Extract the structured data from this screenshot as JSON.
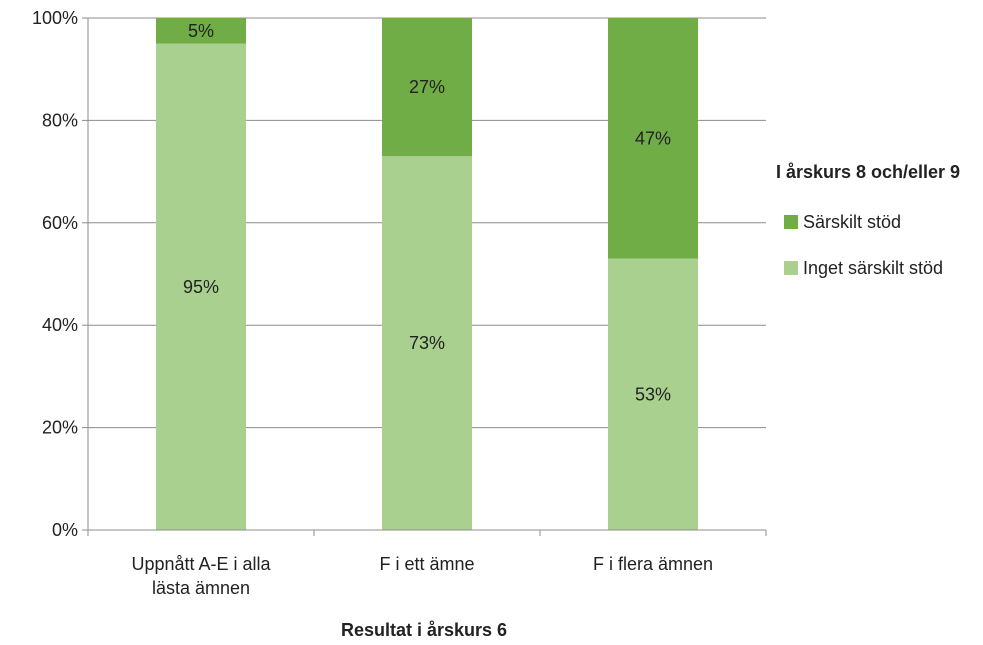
{
  "chart_data": {
    "type": "bar",
    "stacked": true,
    "categories": [
      [
        "Uppnått A-E i alla",
        "lästa ämnen"
      ],
      [
        "F i ett ämne"
      ],
      [
        "F i flera ämnen"
      ]
    ],
    "series": [
      {
        "name": "Inget särskilt stöd",
        "color": "#a9d08e",
        "values": [
          95,
          73,
          53
        ],
        "labels": [
          "95%",
          "73%",
          "53%"
        ]
      },
      {
        "name": "Särskilt stöd",
        "color": "#70ad47",
        "values": [
          5,
          27,
          47
        ],
        "labels": [
          "5%",
          "27%",
          "47%"
        ]
      }
    ],
    "xlabel": "Resultat i årskurs 6",
    "ylabel": "",
    "ylim": [
      0,
      100
    ],
    "yticks": [
      "0%",
      "20%",
      "40%",
      "60%",
      "80%",
      "100%"
    ],
    "grid": true,
    "legend": {
      "title": "I årskurs 8 och/eller 9",
      "position": "right",
      "items": [
        "Särskilt stöd",
        "Inget särskilt stöd"
      ]
    }
  }
}
